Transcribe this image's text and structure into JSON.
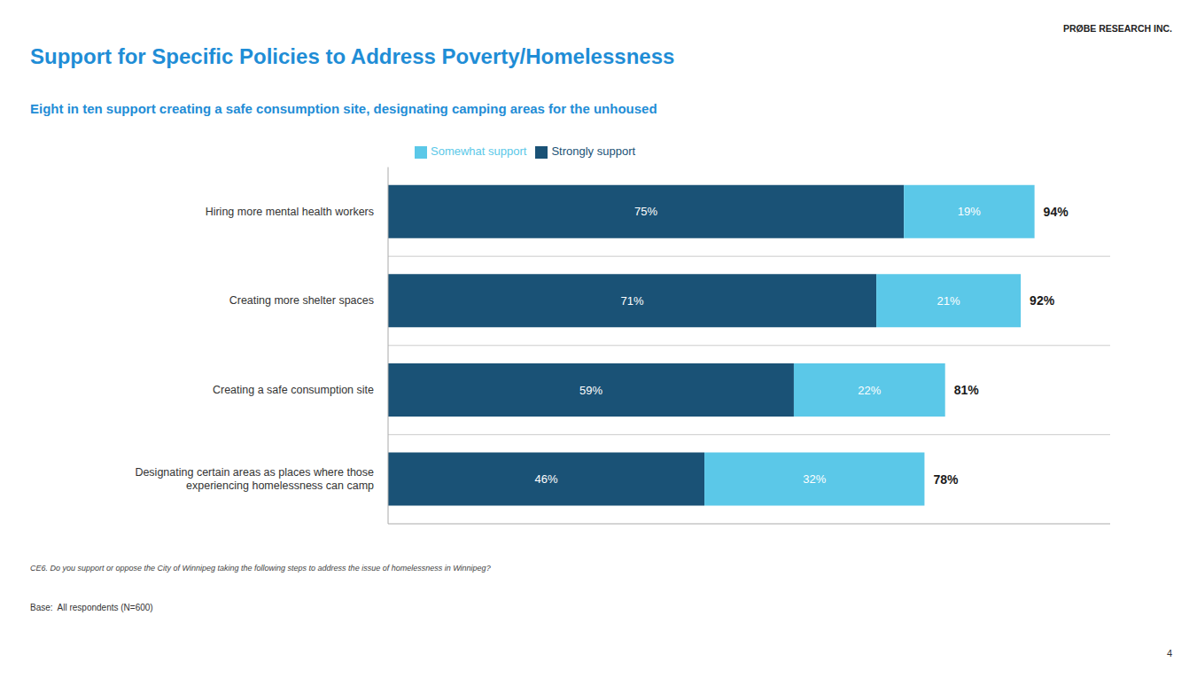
{
  "chart_data": {
    "type": "bar",
    "orientation": "horizontal",
    "stacked": true,
    "title": "Support for Specific Policies to Address Poverty/Homelessness",
    "subtitle": "Eight in ten support creating a safe consumption site, designating camping areas for the unhoused",
    "categories": [
      "Hiring more mental health workers",
      "Creating more shelter spaces",
      "Creating a safe consumption site",
      "Designating certain areas as places where those\nexperiencing homelessness can camp"
    ],
    "series": [
      {
        "name": "Strongly support",
        "color": "#1A5276",
        "values": [
          75,
          71,
          59,
          46
        ],
        "value_labels": [
          "75%",
          "71%",
          "59%",
          "46%"
        ]
      },
      {
        "name": "Somewhat support",
        "color": "#5BC8E8",
        "values": [
          19,
          21,
          22,
          32
        ],
        "value_labels": [
          "19%",
          "21%",
          "22%",
          "32%"
        ]
      }
    ],
    "data_labels": true,
    "annotations": [
      {
        "category": "Hiring more mental health workers",
        "value": 94,
        "text": "94%"
      },
      {
        "category": "Creating more shelter spaces",
        "value": 92,
        "text": "92%"
      },
      {
        "category": "Creating a safe consumption site",
        "value": 81,
        "text": "81%"
      },
      {
        "category": "Designating certain areas as places where those\nexperiencing homelessness can camp",
        "value": 78,
        "text": "78%"
      }
    ],
    "xlim": [
      0,
      105
    ],
    "tick_labels": "y",
    "grid": true,
    "legend": "top",
    "footnote": "CE6. Do you support or oppose the City of Winnipeg taking the following steps to address the issue of homelessness in Winnipeg?",
    "base_note": "Base:  All respondents (N=600)",
    "branding": "PRØBE RESEARCH INC.",
    "page_number": "4"
  }
}
